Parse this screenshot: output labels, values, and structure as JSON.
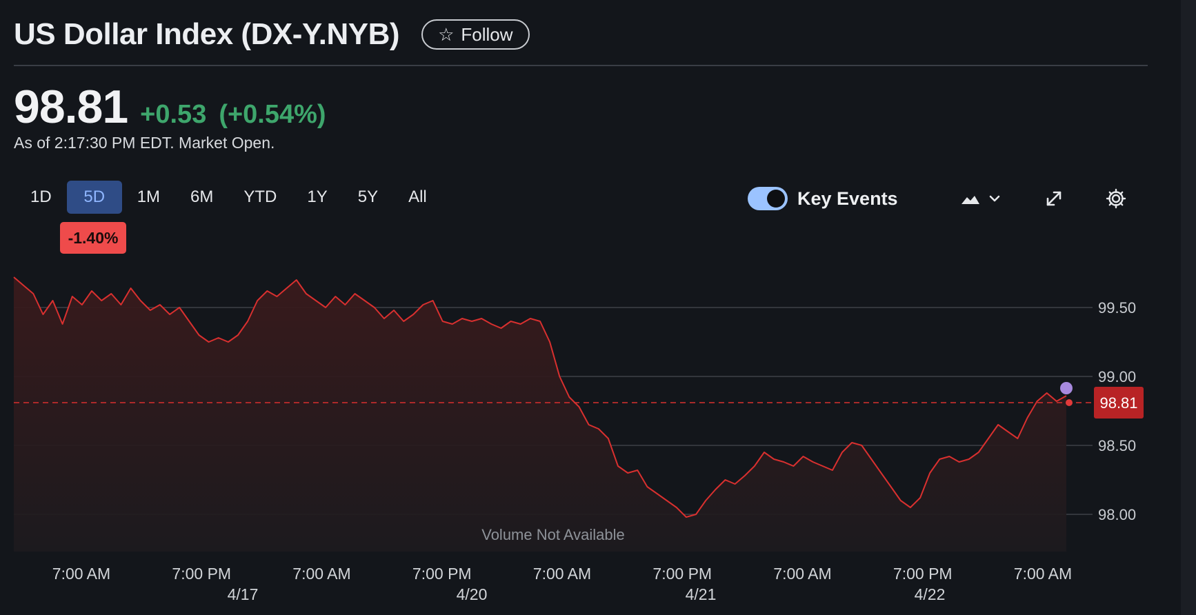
{
  "header": {
    "title": "US Dollar Index (DX-Y.NYB)",
    "follow_label": "Follow"
  },
  "quote": {
    "price": "98.81",
    "change": "+0.53",
    "change_pct": "(+0.54%)",
    "as_of": "As of 2:17:30 PM EDT. Market Open.",
    "positive_color": "#3ea66c"
  },
  "ranges": {
    "items": [
      "1D",
      "5D",
      "1M",
      "6M",
      "YTD",
      "1Y",
      "5Y",
      "All"
    ],
    "active": "5D",
    "period_change": "-1.40%"
  },
  "controls": {
    "key_events_label": "Key Events",
    "key_events_on": true,
    "chart_type_icon": "mountain-chart-icon",
    "expand_icon": "expand-icon",
    "settings_icon": "gear-icon"
  },
  "chart_data": {
    "type": "area",
    "line_color": "#d9302f",
    "y_ticks": [
      "99.50",
      "99.00",
      "98.50",
      "98.00"
    ],
    "ylim": [
      97.93,
      99.75
    ],
    "x_tick_labels": [
      "7:00 AM",
      "7:00 PM",
      "7:00 AM",
      "7:00 PM",
      "7:00 AM",
      "7:00 PM",
      "7:00 AM",
      "7:00 PM",
      "7:00 AM"
    ],
    "date_labels": [
      "4/17",
      "4/20",
      "4/21",
      "4/22"
    ],
    "current_price": "98.81",
    "current_value": 98.81,
    "volume_note": "Volume Not Available",
    "series": [
      {
        "values": [
          99.72,
          99.66,
          99.6,
          99.45,
          99.55,
          99.38,
          99.58,
          99.52,
          99.62,
          99.55,
          99.6,
          99.52,
          99.64,
          99.55,
          99.48,
          99.52,
          99.45,
          99.5,
          99.4,
          99.3,
          99.25,
          99.28,
          99.25,
          99.3,
          99.4,
          99.55,
          99.62,
          99.58,
          99.64,
          99.7,
          99.6,
          99.55,
          99.5,
          99.58,
          99.52,
          99.6,
          99.55,
          99.5,
          99.42,
          99.48,
          99.4,
          99.45,
          99.52,
          99.55,
          99.4,
          99.38,
          99.42,
          99.4,
          99.42,
          99.38,
          99.35,
          99.4,
          99.38,
          99.42,
          99.4,
          99.25,
          99.0,
          98.85,
          98.78,
          98.65,
          98.62,
          98.55,
          98.35,
          98.3,
          98.32,
          98.2,
          98.15,
          98.1,
          98.05,
          97.98,
          98.0,
          98.1,
          98.18,
          98.25,
          98.22,
          98.28,
          98.35,
          98.45,
          98.4,
          98.38,
          98.35,
          98.42,
          98.38,
          98.35,
          98.32,
          98.45,
          98.52,
          98.5,
          98.4,
          98.3,
          98.2,
          98.1,
          98.05,
          98.12,
          98.3,
          98.4,
          98.42,
          98.38,
          98.4,
          98.45,
          98.55,
          98.65,
          98.6,
          98.55,
          98.7,
          98.82,
          98.88,
          98.82,
          98.86
        ]
      }
    ]
  }
}
